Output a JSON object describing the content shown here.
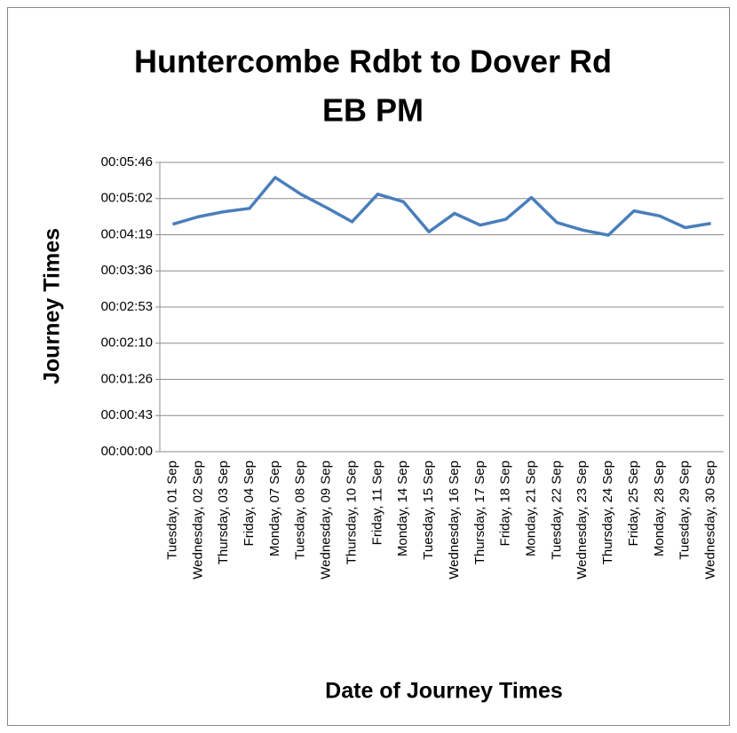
{
  "chart_data": {
    "type": "line",
    "title": [
      "Huntercombe Rdbt to Dover Rd",
      "EB PM"
    ],
    "y_label": "Journey Times",
    "x_label": "Date of Journey Times",
    "categories": [
      "Tuesday, 01 Sep",
      "Wednesday, 02 Sep",
      "Thursday, 03 Sep",
      "Friday, 04 Sep",
      "Monday, 07 Sep",
      "Tuesday, 08 Sep",
      "Wednesday, 09 Sep",
      "Thursday, 10 Sep",
      "Friday, 11 Sep",
      "Monday, 14 Sep",
      "Tuesday, 15 Sep",
      "Wednesday, 16 Sep",
      "Thursday, 17 Sep",
      "Friday, 18 Sep",
      "Monday, 21 Sep",
      "Tuesday, 22 Sep",
      "Wednesday, 23 Sep",
      "Thursday, 24 Sep",
      "Friday, 25 Sep",
      "Monday, 28 Sep",
      "Tuesday, 29 Sep",
      "Wednesday, 30 Sep"
    ],
    "series": [
      {
        "name": "Journey Times",
        "color": "#4a7ebb",
        "values": [
          272,
          281,
          287,
          291,
          328,
          308,
          292,
          275,
          308,
          299,
          263,
          285,
          271,
          278,
          304,
          274,
          265,
          259,
          288,
          282,
          268,
          273
        ]
      }
    ],
    "ylim": [
      0,
      346
    ],
    "yticks": [
      {
        "value": 0,
        "label": "00:00:00"
      },
      {
        "value": 43.25,
        "label": "00:00:43"
      },
      {
        "value": 86.5,
        "label": "00:01:26"
      },
      {
        "value": 129.75,
        "label": "00:02:10"
      },
      {
        "value": 173,
        "label": "00:02:53"
      },
      {
        "value": 216.25,
        "label": "00:03:36"
      },
      {
        "value": 259.5,
        "label": "00:04:19"
      },
      {
        "value": 302.75,
        "label": "00:05:02"
      },
      {
        "value": 346,
        "label": "00:05:46"
      }
    ],
    "grid": true
  }
}
